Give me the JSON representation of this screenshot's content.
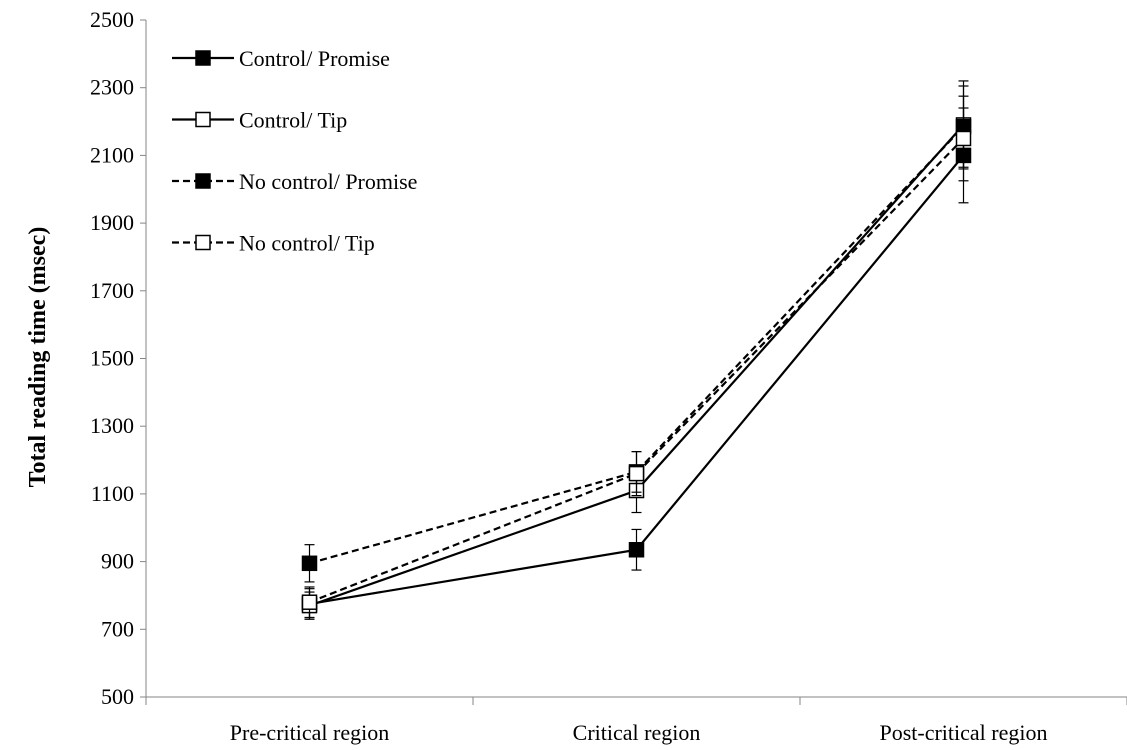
{
  "chart_data": {
    "type": "line",
    "title": "",
    "xlabel": "",
    "ylabel": "Total reading time (msec)",
    "categories": [
      "Pre-critical region",
      "Critical region",
      "Post-critical region"
    ],
    "ylim": [
      500,
      2500
    ],
    "yticks": [
      500,
      700,
      900,
      1100,
      1300,
      1500,
      1700,
      1900,
      2100,
      2300,
      2500
    ],
    "grid": false,
    "legend": "top-left",
    "series": [
      {
        "name": "Control/ Promise",
        "values": [
          775,
          935,
          2100
        ],
        "errors": [
          45,
          60,
          140
        ],
        "marker": "filled-square",
        "line": "solid"
      },
      {
        "name": "Control/ Tip",
        "values": [
          770,
          1110,
          2190
        ],
        "errors": [
          40,
          65,
          130
        ],
        "marker": "open-square",
        "line": "solid"
      },
      {
        "name": "No control/ Promise",
        "values": [
          895,
          1165,
          2185
        ],
        "errors": [
          55,
          60,
          120
        ],
        "marker": "filled-square",
        "line": "dashed"
      },
      {
        "name": "No control/ Tip",
        "values": [
          780,
          1160,
          2150
        ],
        "errors": [
          45,
          65,
          125
        ],
        "marker": "open-square",
        "line": "dashed"
      }
    ]
  }
}
